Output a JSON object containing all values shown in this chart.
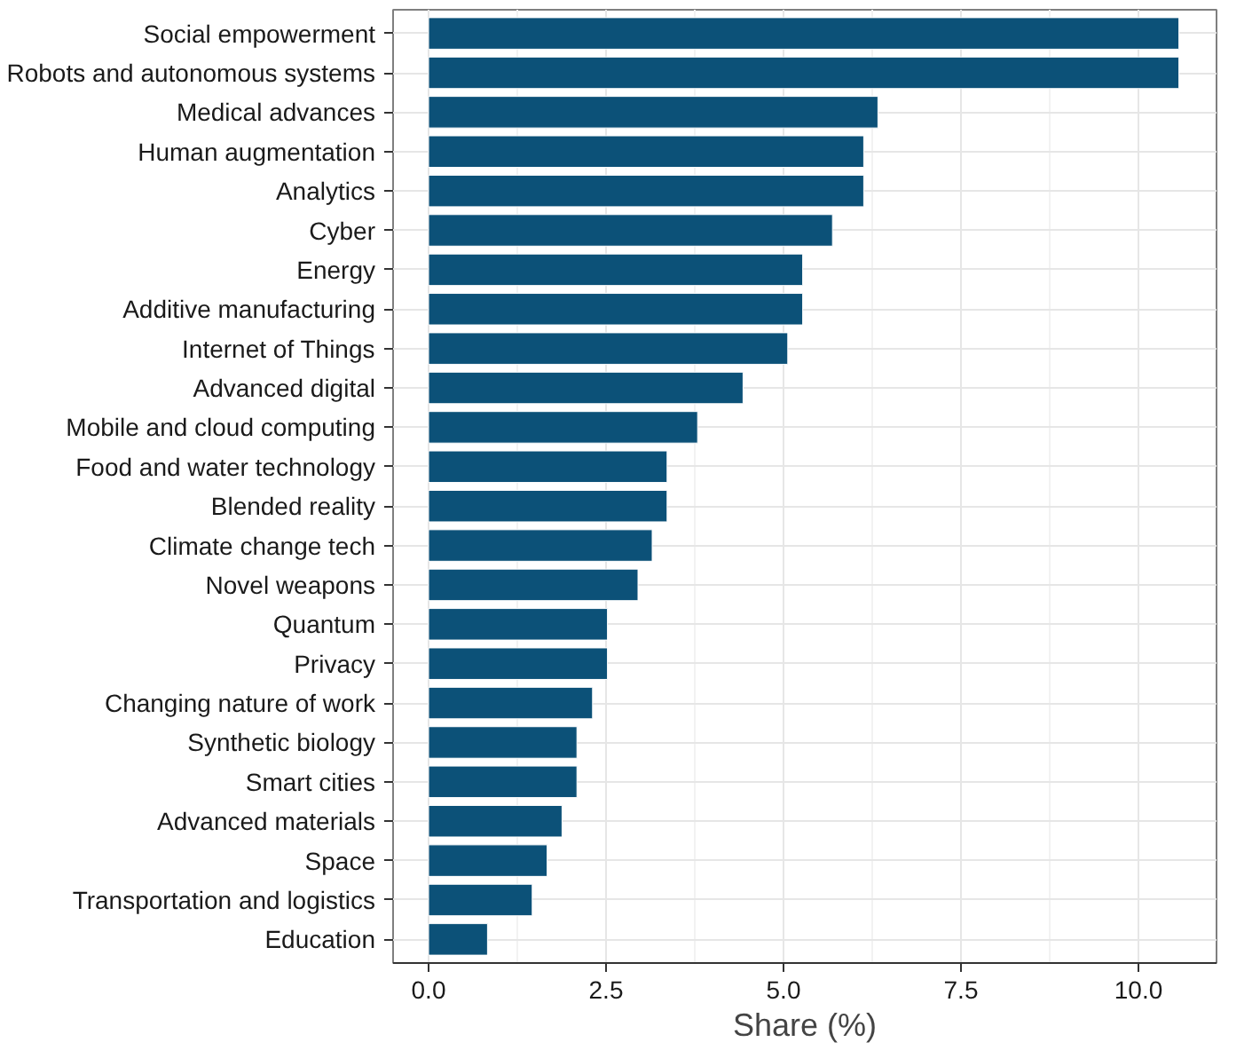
{
  "chart_data": {
    "type": "bar",
    "orientation": "horizontal",
    "xlabel": "Share (%)",
    "categories": [
      "Social empowerment",
      "Robots and autonomous systems",
      "Medical advances",
      "Human augmentation",
      "Analytics",
      "Cyber",
      "Energy",
      "Additive manufacturing",
      "Internet of Things",
      "Advanced digital",
      "Mobile and cloud computing",
      "Food and water technology",
      "Blended reality",
      "Climate change tech",
      "Novel weapons",
      "Quantum",
      "Privacy",
      "Changing nature of work",
      "Synthetic biology",
      "Smart cities",
      "Advanced materials",
      "Space",
      "Transportation and logistics",
      "Education"
    ],
    "values": [
      10.57,
      10.57,
      6.33,
      6.13,
      6.13,
      5.69,
      5.27,
      5.27,
      5.06,
      4.43,
      3.79,
      3.36,
      3.36,
      3.15,
      2.95,
      2.52,
      2.52,
      2.31,
      2.09,
      2.09,
      1.88,
      1.67,
      1.46,
      0.83
    ],
    "color": "#0c5178",
    "xlim": [
      -0.5,
      11.1
    ],
    "xticks": [
      {
        "value": 0,
        "label": "0.0"
      },
      {
        "value": 2.5,
        "label": "2.5"
      },
      {
        "value": 5,
        "label": "5.0"
      },
      {
        "value": 7.5,
        "label": "7.5"
      },
      {
        "value": 10,
        "label": "10.0"
      }
    ],
    "grid": true
  }
}
